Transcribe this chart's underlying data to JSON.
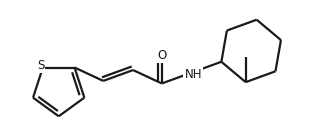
{
  "background_color": "#ffffff",
  "line_color": "#1a1a1a",
  "line_width": 1.6,
  "fig_width": 3.14,
  "fig_height": 1.36,
  "dpi": 100,
  "label_S": {
    "text": "S",
    "fontsize": 8.5
  },
  "label_O": {
    "text": "O",
    "fontsize": 8.5
  },
  "label_NH": {
    "text": "NH",
    "fontsize": 8.5
  }
}
